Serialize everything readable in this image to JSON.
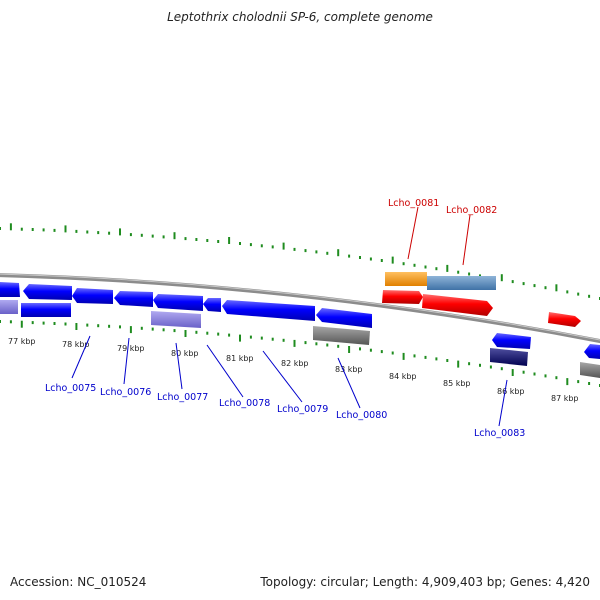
{
  "title": "Leptothrix cholodnii SP-6, complete genome",
  "footer": {
    "accession": "Accession: NC_010524",
    "topology": "Topology: circular; Length: 4,909,403 bp; Genes: 4,420"
  },
  "colors": {
    "forward": "#ff0000",
    "reverse": "#0000ff",
    "backbone": "#8c8c8c",
    "ticks": "#1f8c1f",
    "label_forward": "#cc0000",
    "label_reverse": "#0000cc"
  },
  "kbp_labels": [
    "77 kbp",
    "78 kbp",
    "79 kbp",
    "80 kbp",
    "81 kbp",
    "82 kbp",
    "83 kbp",
    "84 kbp",
    "85 kbp",
    "86 kbp",
    "87 kbp"
  ],
  "gene_labels": [
    {
      "name": "Lcho_0075",
      "strand": "reverse"
    },
    {
      "name": "Lcho_0076",
      "strand": "reverse"
    },
    {
      "name": "Lcho_0077",
      "strand": "reverse"
    },
    {
      "name": "Lcho_0078",
      "strand": "reverse"
    },
    {
      "name": "Lcho_0079",
      "strand": "reverse"
    },
    {
      "name": "Lcho_0080",
      "strand": "reverse"
    },
    {
      "name": "Lcho_0081",
      "strand": "forward"
    },
    {
      "name": "Lcho_0082",
      "strand": "forward"
    },
    {
      "name": "Lcho_0083",
      "strand": "reverse"
    }
  ]
}
